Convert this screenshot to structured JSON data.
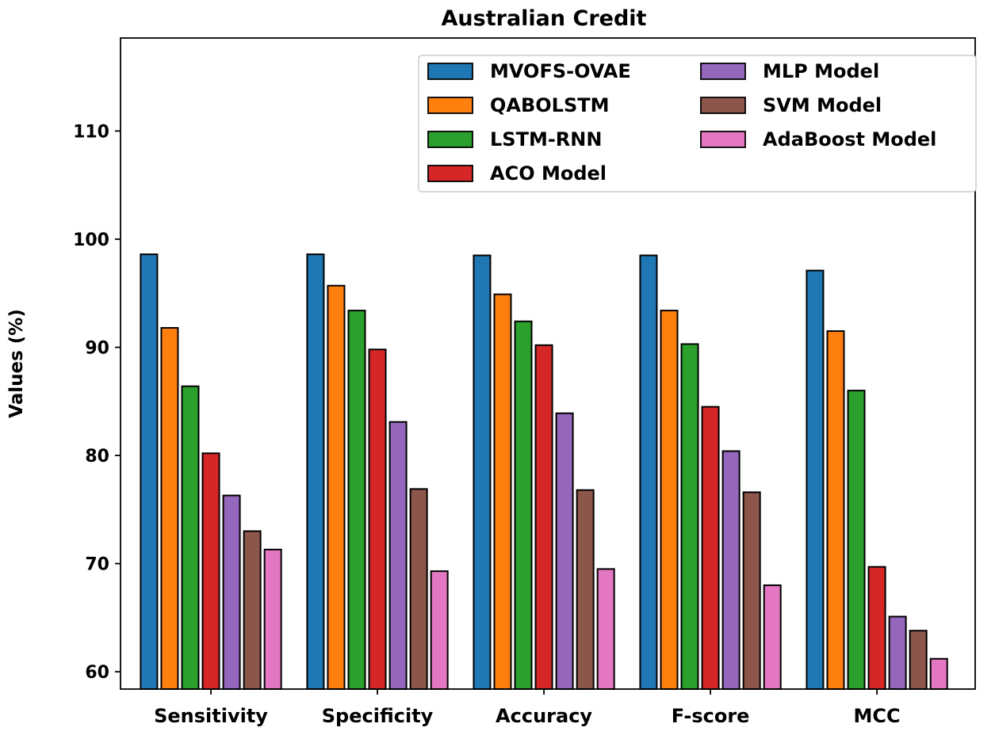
{
  "chart_data": {
    "type": "bar",
    "title": "Australian Credit",
    "xlabel": "",
    "ylabel": "Values (%)",
    "ylim": [
      58.4,
      118.6
    ],
    "yticks": [
      60,
      70,
      80,
      90,
      100,
      110
    ],
    "grid": false,
    "legend_placement": "top-right",
    "categories": [
      "Sensitivity",
      "Specificity",
      "Accuracy",
      "F-score",
      "MCC"
    ],
    "series": [
      {
        "name": "MVOFS-OVAE",
        "color": "#1f77b4",
        "values": [
          98.6,
          98.6,
          98.5,
          98.5,
          97.1
        ]
      },
      {
        "name": "QABOLSTM",
        "color": "#ff7f0e",
        "values": [
          91.8,
          95.7,
          94.9,
          93.4,
          91.5
        ]
      },
      {
        "name": "LSTM-RNN",
        "color": "#2ca02c",
        "values": [
          86.4,
          93.4,
          92.4,
          90.3,
          86.0
        ]
      },
      {
        "name": "ACO Model",
        "color": "#d62728",
        "values": [
          80.2,
          89.8,
          90.2,
          84.5,
          69.7
        ]
      },
      {
        "name": "MLP Model",
        "color": "#9467bd",
        "values": [
          76.3,
          83.1,
          83.9,
          80.4,
          65.1
        ]
      },
      {
        "name": "SVM Model",
        "color": "#8c564b",
        "values": [
          73.0,
          76.9,
          76.8,
          76.6,
          63.8
        ]
      },
      {
        "name": "AdaBoost Model",
        "color": "#e377c2",
        "values": [
          71.3,
          69.3,
          69.5,
          68.0,
          61.2
        ]
      }
    ]
  }
}
